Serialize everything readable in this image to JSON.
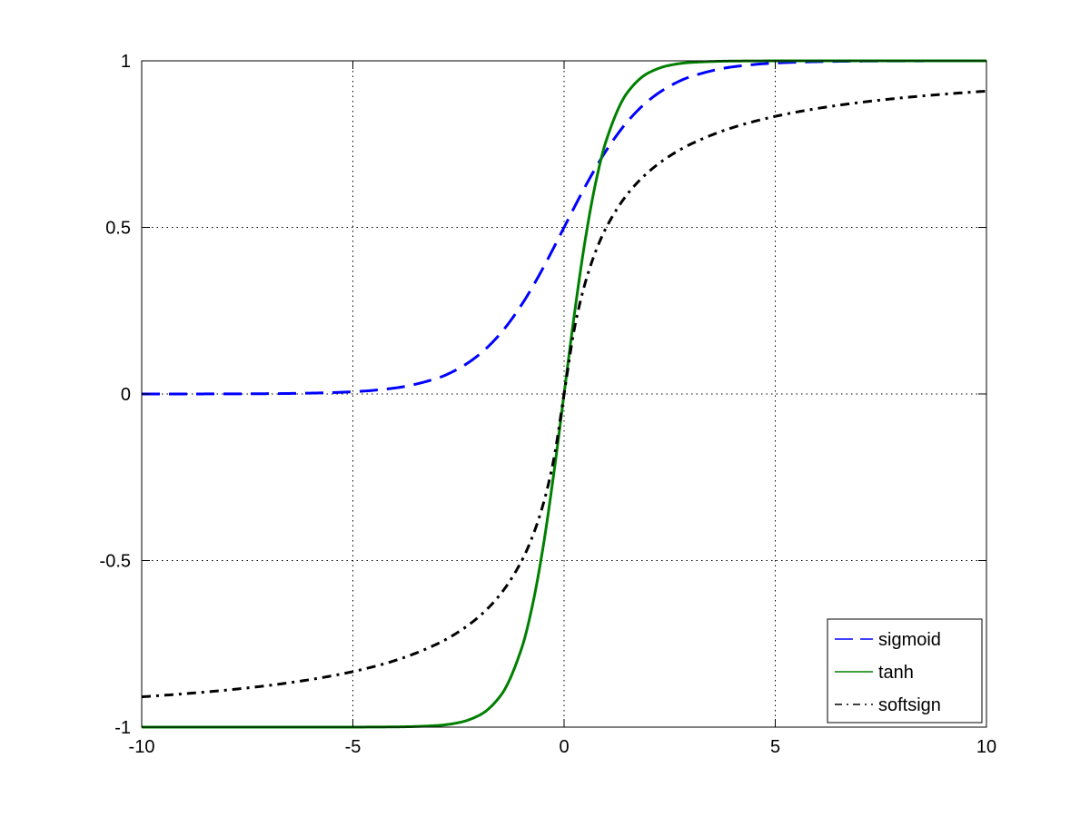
{
  "chart_data": {
    "type": "line",
    "title": "",
    "xlabel": "",
    "ylabel": "",
    "xlim": [
      -10,
      10
    ],
    "ylim": [
      -1,
      1
    ],
    "xticks": [
      -10,
      -5,
      0,
      5,
      10
    ],
    "yticks": [
      -1,
      -0.5,
      0,
      0.5,
      1
    ],
    "xtick_labels": [
      "-10",
      "-5",
      "0",
      "5",
      "10"
    ],
    "ytick_labels": [
      "-1",
      "-0.5",
      "0",
      "0.5",
      "1"
    ],
    "grid": true,
    "legend_position": "bottom-right",
    "x": [
      -10,
      -9,
      -8,
      -7,
      -6,
      -5,
      -4,
      -3,
      -2.5,
      -2,
      -1.5,
      -1,
      -0.75,
      -0.5,
      -0.25,
      0,
      0.25,
      0.5,
      0.75,
      1,
      1.5,
      2,
      2.5,
      3,
      4,
      5,
      6,
      7,
      8,
      9,
      10
    ],
    "series": [
      {
        "name": "sigmoid",
        "color": "#0000ff",
        "style": "dashed",
        "values": [
          0.0,
          0.0001,
          0.0003,
          0.0009,
          0.0025,
          0.0067,
          0.018,
          0.0474,
          0.0759,
          0.1192,
          0.1824,
          0.2689,
          0.3208,
          0.3775,
          0.4378,
          0.5,
          0.5622,
          0.6225,
          0.6792,
          0.7311,
          0.8176,
          0.8808,
          0.9241,
          0.9526,
          0.982,
          0.9933,
          0.9975,
          0.9991,
          0.9997,
          0.9999,
          1.0
        ]
      },
      {
        "name": "tanh",
        "color": "#008000",
        "style": "solid",
        "values": [
          -1.0,
          -1.0,
          -1.0,
          -1.0,
          -1.0,
          -0.9999,
          -0.9993,
          -0.9951,
          -0.9866,
          -0.964,
          -0.9051,
          -0.7616,
          -0.6351,
          -0.4621,
          -0.2449,
          0.0,
          0.2449,
          0.4621,
          0.6351,
          0.7616,
          0.9051,
          0.964,
          0.9866,
          0.9951,
          0.9993,
          0.9999,
          1.0,
          1.0,
          1.0,
          1.0,
          1.0
        ]
      },
      {
        "name": "softsign",
        "color": "#000000",
        "style": "dashdot",
        "values": [
          -0.9091,
          -0.9,
          -0.8889,
          -0.875,
          -0.8571,
          -0.8333,
          -0.8,
          -0.75,
          -0.7143,
          -0.6667,
          -0.6,
          -0.5,
          -0.4286,
          -0.3333,
          -0.2,
          0.0,
          0.2,
          0.3333,
          0.4286,
          0.5,
          0.6,
          0.6667,
          0.7143,
          0.75,
          0.8,
          0.8333,
          0.8571,
          0.875,
          0.8889,
          0.9,
          0.9091
        ]
      }
    ]
  }
}
